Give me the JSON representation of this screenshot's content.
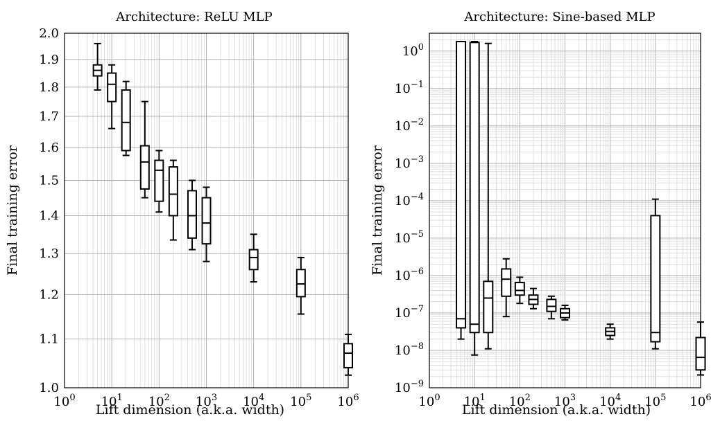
{
  "chart_data": [
    {
      "type": "box",
      "title": "Architecture: ReLU MLP",
      "xlabel": "Lift dimension (a.k.a. width)",
      "ylabel": "Final training error",
      "xscale": "log",
      "yscale": "log",
      "xlim": [
        1,
        1000000
      ],
      "ylim": [
        1.0,
        2.0
      ],
      "grid": true,
      "xticks": [
        {
          "b": "10",
          "e": "0"
        },
        {
          "b": "10",
          "e": "1"
        },
        {
          "b": "10",
          "e": "2"
        },
        {
          "b": "10",
          "e": "3"
        },
        {
          "b": "10",
          "e": "4"
        },
        {
          "b": "10",
          "e": "5"
        },
        {
          "b": "10",
          "e": "6"
        }
      ],
      "yticks": [
        "1.0",
        "1.1",
        "1.2",
        "1.3",
        "1.4",
        "1.5",
        "1.6",
        "1.7",
        "1.8",
        "1.9",
        "2.0"
      ],
      "boxes": [
        {
          "x": 5,
          "min": 1.79,
          "q1": 1.84,
          "median": 1.86,
          "q3": 1.88,
          "max": 1.96
        },
        {
          "x": 10,
          "min": 1.66,
          "q1": 1.75,
          "median": 1.81,
          "q3": 1.85,
          "max": 1.88
        },
        {
          "x": 20,
          "min": 1.575,
          "q1": 1.59,
          "median": 1.68,
          "q3": 1.79,
          "max": 1.82
        },
        {
          "x": 50,
          "min": 1.45,
          "q1": 1.475,
          "median": 1.555,
          "q3": 1.605,
          "max": 1.75
        },
        {
          "x": 100,
          "min": 1.41,
          "q1": 1.44,
          "median": 1.53,
          "q3": 1.56,
          "max": 1.59
        },
        {
          "x": 200,
          "min": 1.335,
          "q1": 1.4,
          "median": 1.46,
          "q3": 1.54,
          "max": 1.56
        },
        {
          "x": 500,
          "min": 1.31,
          "q1": 1.34,
          "median": 1.4,
          "q3": 1.47,
          "max": 1.5
        },
        {
          "x": 1000,
          "min": 1.28,
          "q1": 1.325,
          "median": 1.38,
          "q3": 1.45,
          "max": 1.48
        },
        {
          "x": 10000,
          "min": 1.23,
          "q1": 1.26,
          "median": 1.29,
          "q3": 1.31,
          "max": 1.35
        },
        {
          "x": 100000,
          "min": 1.155,
          "q1": 1.195,
          "median": 1.225,
          "q3": 1.26,
          "max": 1.29
        },
        {
          "x": 1000000,
          "min": 1.025,
          "q1": 1.04,
          "median": 1.07,
          "q3": 1.09,
          "max": 1.11
        }
      ]
    },
    {
      "type": "box",
      "title": "Architecture: Sine-based MLP",
      "xlabel": "Lift dimension (a.k.a. width)",
      "ylabel": "Final training error",
      "xscale": "log",
      "yscale": "log",
      "xlim": [
        1,
        1000000
      ],
      "ylim": [
        1e-09,
        3
      ],
      "grid": true,
      "xticks": [
        {
          "b": "10",
          "e": "0"
        },
        {
          "b": "10",
          "e": "1"
        },
        {
          "b": "10",
          "e": "2"
        },
        {
          "b": "10",
          "e": "3"
        },
        {
          "b": "10",
          "e": "4"
        },
        {
          "b": "10",
          "e": "5"
        },
        {
          "b": "10",
          "e": "6"
        }
      ],
      "yticks": [
        {
          "b": "10",
          "e": "0"
        },
        {
          "b": "10",
          "e": "−1"
        },
        {
          "b": "10",
          "e": "−2"
        },
        {
          "b": "10",
          "e": "−3"
        },
        {
          "b": "10",
          "e": "−4"
        },
        {
          "b": "10",
          "e": "−5"
        },
        {
          "b": "10",
          "e": "−6"
        },
        {
          "b": "10",
          "e": "−7"
        },
        {
          "b": "10",
          "e": "−8"
        },
        {
          "b": "10",
          "e": "−9"
        }
      ],
      "boxes": [
        {
          "x": 5,
          "min": 2e-08,
          "q1": 4e-08,
          "median": 7e-08,
          "q3": 1.8,
          "max": 1.8
        },
        {
          "x": 10,
          "min": 7.5e-09,
          "q1": 3e-08,
          "median": 5e-08,
          "q3": 1.7,
          "max": 1.8
        },
        {
          "x": 20,
          "min": 1.1e-08,
          "q1": 3e-08,
          "median": 2.5e-07,
          "q3": 7e-07,
          "max": 1.6
        },
        {
          "x": 50,
          "min": 8e-08,
          "q1": 2.8e-07,
          "median": 8e-07,
          "q3": 1.5e-06,
          "max": 2.8e-06
        },
        {
          "x": 100,
          "min": 1.8e-07,
          "q1": 3e-07,
          "median": 4e-07,
          "q3": 6.5e-07,
          "max": 9e-07
        },
        {
          "x": 200,
          "min": 1.3e-07,
          "q1": 1.7e-07,
          "median": 2.3e-07,
          "q3": 3e-07,
          "max": 4.5e-07
        },
        {
          "x": 500,
          "min": 7e-08,
          "q1": 1.1e-07,
          "median": 1.5e-07,
          "q3": 2.3e-07,
          "max": 2.8e-07
        },
        {
          "x": 1000,
          "min": 6.5e-08,
          "q1": 7.5e-08,
          "median": 1e-07,
          "q3": 1.3e-07,
          "max": 1.6e-07
        },
        {
          "x": 10000,
          "min": 2e-08,
          "q1": 2.5e-08,
          "median": 3.2e-08,
          "q3": 4e-08,
          "max": 5e-08
        },
        {
          "x": 100000,
          "min": 1.1e-08,
          "q1": 1.7e-08,
          "median": 3e-08,
          "q3": 4e-05,
          "max": 0.00011
        },
        {
          "x": 1000000,
          "min": 2.2e-09,
          "q1": 3e-09,
          "median": 6.5e-09,
          "q3": 2.2e-08,
          "max": 5.7e-08
        }
      ]
    }
  ]
}
